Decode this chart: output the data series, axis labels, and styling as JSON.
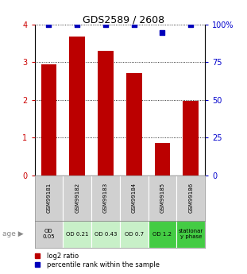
{
  "title": "GDS2589 / 2608",
  "samples": [
    "GSM99181",
    "GSM99182",
    "GSM99183",
    "GSM99184",
    "GSM99185",
    "GSM99186"
  ],
  "log2_ratios": [
    2.95,
    3.68,
    3.3,
    2.72,
    0.85,
    1.98
  ],
  "percentile_ranks": [
    100,
    100,
    100,
    100,
    95,
    100
  ],
  "age_labels": [
    "OD\n0.05",
    "OD 0.21",
    "OD 0.43",
    "OD 0.7",
    "OD 1.2",
    "stationar\ny phase"
  ],
  "age_bg_colors": [
    "#d0d0d0",
    "#c8f0c8",
    "#c8f0c8",
    "#c8f0c8",
    "#44cc44",
    "#44cc44"
  ],
  "sample_bg_color": "#d0d0d0",
  "bar_color": "#bb0000",
  "dot_color": "#0000bb",
  "ylim_left": [
    0,
    4
  ],
  "ylim_right": [
    0,
    100
  ],
  "yticks_left": [
    0,
    1,
    2,
    3,
    4
  ],
  "yticks_right": [
    0,
    25,
    50,
    75,
    100
  ],
  "ylabel_left_color": "#cc0000",
  "ylabel_right_color": "#0000cc",
  "legend_bar_label": "log2 ratio",
  "legend_dot_label": "percentile rank within the sample",
  "bar_width": 0.55,
  "title_fontsize": 9,
  "tick_fontsize": 7,
  "label_fontsize": 5,
  "age_fontsize": 5,
  "legend_fontsize": 6
}
